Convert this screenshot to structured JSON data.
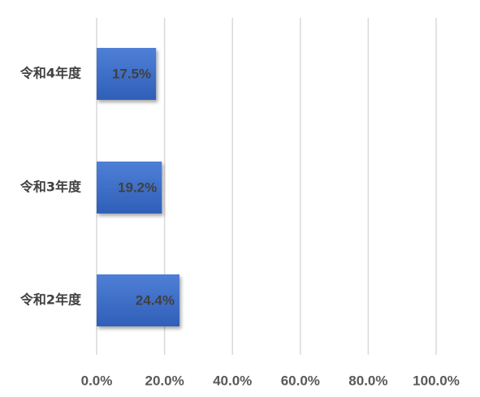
{
  "chart_data": {
    "type": "bar",
    "orientation": "horizontal",
    "categories": [
      "令和4年度",
      "令和3年度",
      "令和2年度"
    ],
    "values": [
      17.5,
      19.2,
      24.4
    ],
    "data_labels": [
      "17.5%",
      "19.2%",
      "24.4%"
    ],
    "xlim": [
      0,
      100
    ],
    "x_ticks": [
      0,
      20,
      40,
      60,
      80,
      100
    ],
    "x_tick_labels": [
      "0.0%",
      "20.0%",
      "40.0%",
      "60.0%",
      "80.0%",
      "100.0%"
    ],
    "grid": true,
    "legend": "none",
    "title": "",
    "xlabel": "",
    "ylabel": "",
    "colors": {
      "bar_top": "#4f7fd6",
      "bar_bottom": "#2f5fb8",
      "grid": "#d9d9d9"
    }
  }
}
